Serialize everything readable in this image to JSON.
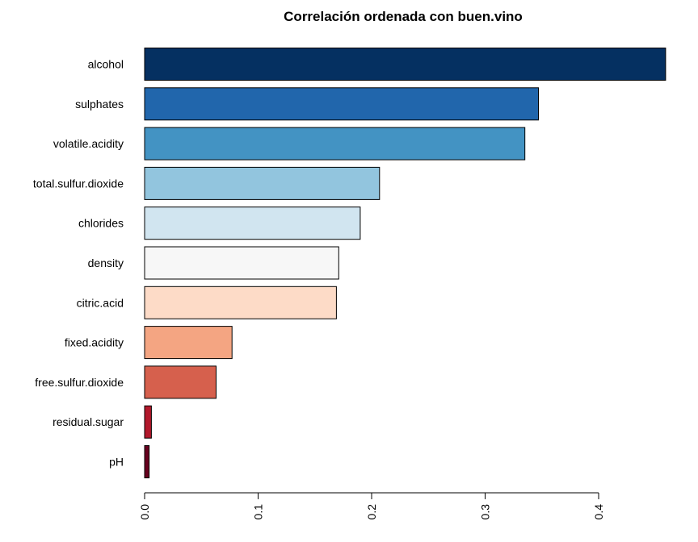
{
  "chart_data": {
    "type": "bar",
    "orientation": "horizontal",
    "title": "Correlación ordenada con buen.vino",
    "xlabel": "",
    "ylabel": "",
    "categories": [
      "alcohol",
      "sulphates",
      "volatile.acidity",
      "total.sulfur.dioxide",
      "chlorides",
      "density",
      "citric.acid",
      "fixed.acidity",
      "free.sulfur.dioxide",
      "residual.sugar",
      "pH"
    ],
    "values": [
      0.459,
      0.347,
      0.335,
      0.207,
      0.19,
      0.171,
      0.169,
      0.077,
      0.063,
      0.006,
      0.004
    ],
    "colors": [
      "#053061",
      "#2166ac",
      "#4393c3",
      "#92c5de",
      "#d1e5f0",
      "#f7f7f7",
      "#fddbc7",
      "#f4a582",
      "#d6604d",
      "#b2182b",
      "#67001f"
    ],
    "xlim": [
      0,
      0.46
    ],
    "xticks": [
      0.0,
      0.1,
      0.2,
      0.3,
      0.4
    ],
    "xtick_labels": [
      "0.0",
      "0.1",
      "0.2",
      "0.3",
      "0.4"
    ],
    "grid": false,
    "legend": "none"
  }
}
